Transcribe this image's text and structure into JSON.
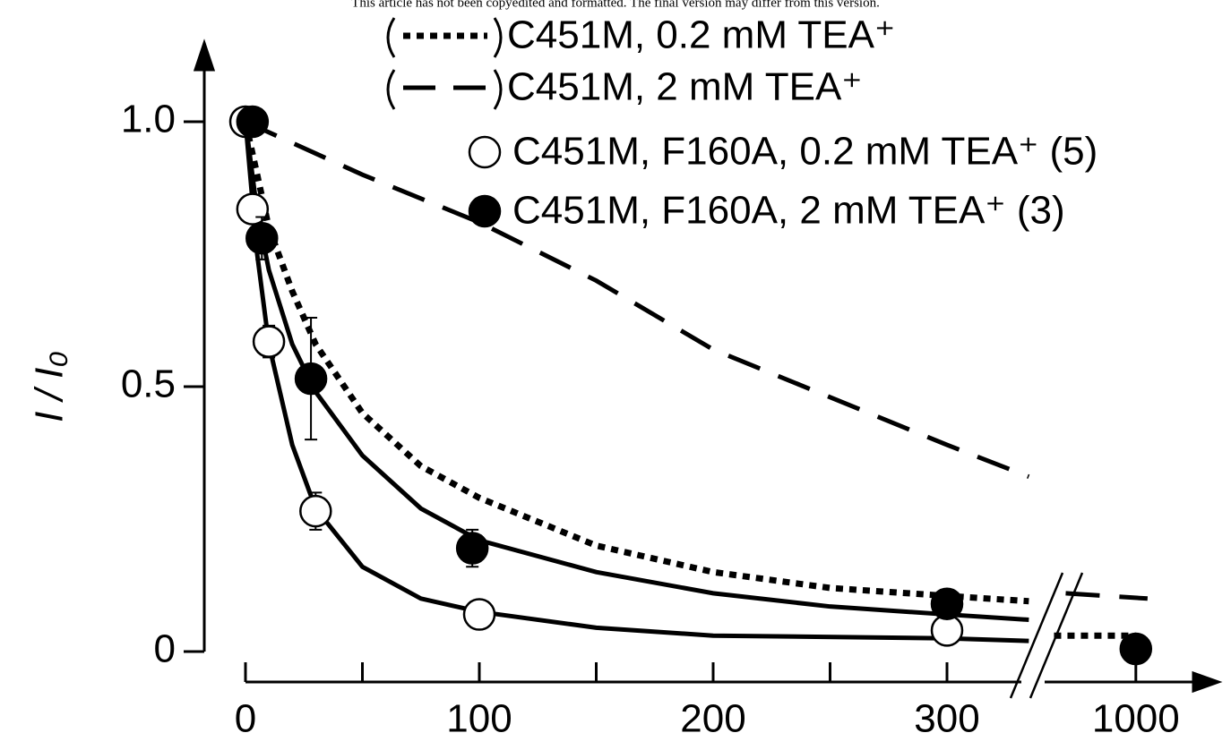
{
  "header_note": "This article has not been copyedited and formatted. The final version may differ from this version.",
  "chart_data": {
    "type": "scatter",
    "ylabel": "I / I₀",
    "xlim": [
      0,
      1030
    ],
    "ylim": [
      0,
      1.13
    ],
    "xbreak": [
      340,
      960
    ],
    "xticks": [
      0,
      100,
      200,
      300,
      1000
    ],
    "xminor": [
      50,
      150,
      250
    ],
    "yticks": [
      0,
      0.5,
      {
        "value": 1,
        "label": "1.0"
      }
    ],
    "series": [
      {
        "name": "C451M, 0.2 mM TEA⁺",
        "mode": "line",
        "dash": "dotted",
        "color": "#000",
        "x": [
          0,
          10,
          20,
          30,
          50,
          75,
          100,
          150,
          200,
          250,
          300,
          335,
          null,
          965,
          1000
        ],
        "values": [
          1,
          0.8,
          0.68,
          0.58,
          0.45,
          0.35,
          0.29,
          0.2,
          0.15,
          0.12,
          0.105,
          0.095,
          null,
          0.03,
          0.03
        ]
      },
      {
        "name": "C451M, 2 mM TEA⁺",
        "mode": "line",
        "dash": "dashed",
        "color": "#000",
        "x": [
          0,
          50,
          100,
          150,
          200,
          250,
          300,
          335,
          null,
          970,
          1005
        ],
        "values": [
          1,
          0.9,
          0.81,
          0.7,
          0.57,
          0.48,
          0.39,
          0.33,
          null,
          0.11,
          0.1
        ]
      },
      {
        "name": "C451M, F160A, 0.2 mM TEA⁺ (5)",
        "mode": "markers",
        "marker": "open",
        "color": "#000",
        "x": [
          0,
          3,
          10,
          30,
          100,
          300
        ],
        "values": [
          1,
          0.835,
          0.585,
          0.265,
          0.07,
          0.04
        ],
        "errors": [
          null,
          null,
          0.03,
          0.035,
          null,
          null
        ]
      },
      {
        "name": "C451M, F160A, 2 mM TEA⁺ (3)",
        "mode": "markers",
        "marker": "filled",
        "color": "#000",
        "x": [
          3,
          7,
          28,
          97,
          300,
          1000
        ],
        "values": [
          1,
          0.78,
          0.515,
          0.195,
          0.09,
          0.005
        ],
        "errors": [
          null,
          0.04,
          0.115,
          0.035,
          null,
          null
        ]
      },
      {
        "mode": "line",
        "dash": "solid",
        "color": "#000",
        "x": [
          0,
          5,
          10,
          20,
          30,
          50,
          75,
          100,
          150,
          200,
          300,
          335
        ],
        "values": [
          1,
          0.75,
          0.58,
          0.39,
          0.27,
          0.16,
          0.1,
          0.075,
          0.045,
          0.03,
          0.025,
          0.02
        ]
      },
      {
        "mode": "line",
        "dash": "solid",
        "color": "#000",
        "x": [
          0,
          5,
          10,
          20,
          30,
          50,
          75,
          100,
          150,
          200,
          250,
          300,
          335
        ],
        "values": [
          1,
          0.83,
          0.72,
          0.58,
          0.49,
          0.37,
          0.27,
          0.21,
          0.15,
          0.11,
          0.085,
          0.07,
          0.06
        ]
      }
    ]
  }
}
